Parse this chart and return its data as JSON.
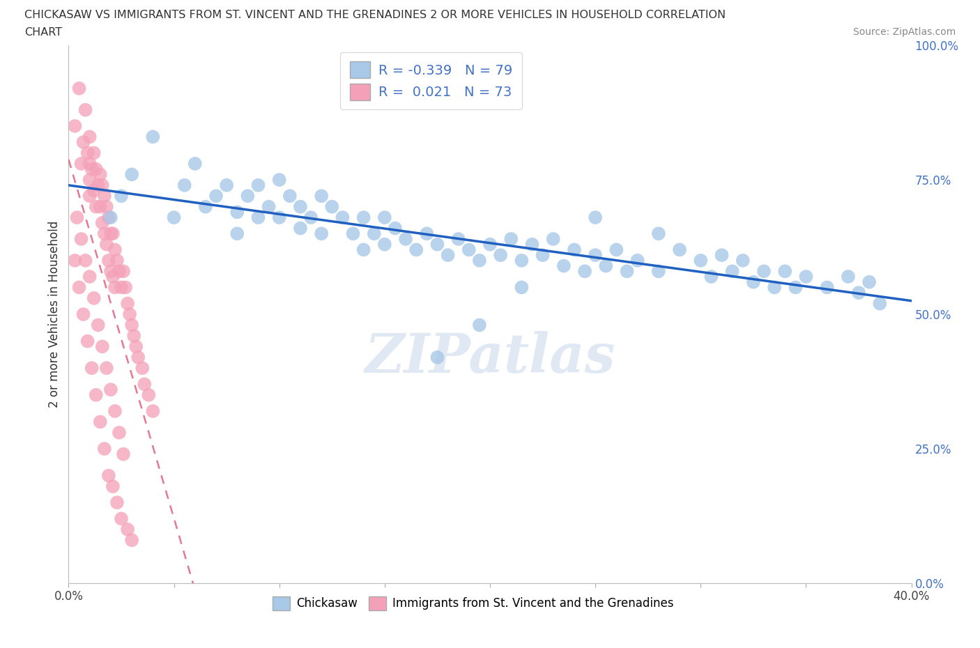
{
  "title_line1": "CHICKASAW VS IMMIGRANTS FROM ST. VINCENT AND THE GRENADINES 2 OR MORE VEHICLES IN HOUSEHOLD CORRELATION",
  "title_line2": "CHART",
  "source_text": "Source: ZipAtlas.com",
  "ylabel": "2 or more Vehicles in Household",
  "xmin": 0.0,
  "xmax": 0.4,
  "ymin": 0.0,
  "ymax": 1.0,
  "blue_color": "#a8c8e8",
  "pink_color": "#f4a0b8",
  "trend_blue_color": "#2060c0",
  "trend_pink_color": "#e06080",
  "blue_R": -0.339,
  "blue_N": 79,
  "pink_R": 0.021,
  "pink_N": 73,
  "legend_label_blue": "Chickasaw",
  "legend_label_pink": "Immigrants from St. Vincent and the Grenadines",
  "watermark": "ZIPatlas",
  "background_color": "#ffffff",
  "grid_color": "#dddddd",
  "right_axis_color": "#4472c4",
  "blue_x": [
    0.02,
    0.025,
    0.03,
    0.04,
    0.05,
    0.055,
    0.06,
    0.065,
    0.07,
    0.075,
    0.08,
    0.08,
    0.085,
    0.09,
    0.09,
    0.095,
    0.1,
    0.1,
    0.105,
    0.11,
    0.11,
    0.115,
    0.12,
    0.12,
    0.125,
    0.13,
    0.135,
    0.14,
    0.14,
    0.145,
    0.15,
    0.15,
    0.155,
    0.16,
    0.165,
    0.17,
    0.175,
    0.18,
    0.185,
    0.19,
    0.195,
    0.2,
    0.205,
    0.21,
    0.215,
    0.22,
    0.225,
    0.23,
    0.235,
    0.24,
    0.245,
    0.25,
    0.255,
    0.26,
    0.265,
    0.27,
    0.28,
    0.29,
    0.3,
    0.305,
    0.31,
    0.315,
    0.32,
    0.325,
    0.33,
    0.335,
    0.34,
    0.345,
    0.35,
    0.36,
    0.37,
    0.375,
    0.38,
    0.385,
    0.215,
    0.195,
    0.175,
    0.25,
    0.28
  ],
  "blue_y": [
    0.68,
    0.72,
    0.76,
    0.83,
    0.68,
    0.74,
    0.78,
    0.7,
    0.72,
    0.74,
    0.69,
    0.65,
    0.72,
    0.68,
    0.74,
    0.7,
    0.75,
    0.68,
    0.72,
    0.7,
    0.66,
    0.68,
    0.72,
    0.65,
    0.7,
    0.68,
    0.65,
    0.68,
    0.62,
    0.65,
    0.68,
    0.63,
    0.66,
    0.64,
    0.62,
    0.65,
    0.63,
    0.61,
    0.64,
    0.62,
    0.6,
    0.63,
    0.61,
    0.64,
    0.6,
    0.63,
    0.61,
    0.64,
    0.59,
    0.62,
    0.58,
    0.61,
    0.59,
    0.62,
    0.58,
    0.6,
    0.58,
    0.62,
    0.6,
    0.57,
    0.61,
    0.58,
    0.6,
    0.56,
    0.58,
    0.55,
    0.58,
    0.55,
    0.57,
    0.55,
    0.57,
    0.54,
    0.56,
    0.52,
    0.55,
    0.48,
    0.42,
    0.68,
    0.65
  ],
  "pink_x": [
    0.003,
    0.005,
    0.006,
    0.007,
    0.008,
    0.009,
    0.01,
    0.01,
    0.01,
    0.01,
    0.011,
    0.012,
    0.012,
    0.013,
    0.013,
    0.014,
    0.015,
    0.015,
    0.016,
    0.016,
    0.017,
    0.017,
    0.018,
    0.018,
    0.019,
    0.019,
    0.02,
    0.02,
    0.021,
    0.021,
    0.022,
    0.022,
    0.023,
    0.024,
    0.025,
    0.026,
    0.027,
    0.028,
    0.029,
    0.03,
    0.031,
    0.032,
    0.033,
    0.035,
    0.036,
    0.038,
    0.04,
    0.003,
    0.005,
    0.007,
    0.009,
    0.011,
    0.013,
    0.015,
    0.017,
    0.019,
    0.021,
    0.023,
    0.025,
    0.028,
    0.004,
    0.006,
    0.008,
    0.01,
    0.012,
    0.014,
    0.016,
    0.018,
    0.02,
    0.022,
    0.024,
    0.026,
    0.03
  ],
  "pink_y": [
    0.85,
    0.92,
    0.78,
    0.82,
    0.88,
    0.8,
    0.83,
    0.75,
    0.78,
    0.72,
    0.77,
    0.8,
    0.73,
    0.77,
    0.7,
    0.74,
    0.76,
    0.7,
    0.74,
    0.67,
    0.72,
    0.65,
    0.7,
    0.63,
    0.68,
    0.6,
    0.65,
    0.58,
    0.65,
    0.57,
    0.62,
    0.55,
    0.6,
    0.58,
    0.55,
    0.58,
    0.55,
    0.52,
    0.5,
    0.48,
    0.46,
    0.44,
    0.42,
    0.4,
    0.37,
    0.35,
    0.32,
    0.6,
    0.55,
    0.5,
    0.45,
    0.4,
    0.35,
    0.3,
    0.25,
    0.2,
    0.18,
    0.15,
    0.12,
    0.1,
    0.68,
    0.64,
    0.6,
    0.57,
    0.53,
    0.48,
    0.44,
    0.4,
    0.36,
    0.32,
    0.28,
    0.24,
    0.08
  ]
}
